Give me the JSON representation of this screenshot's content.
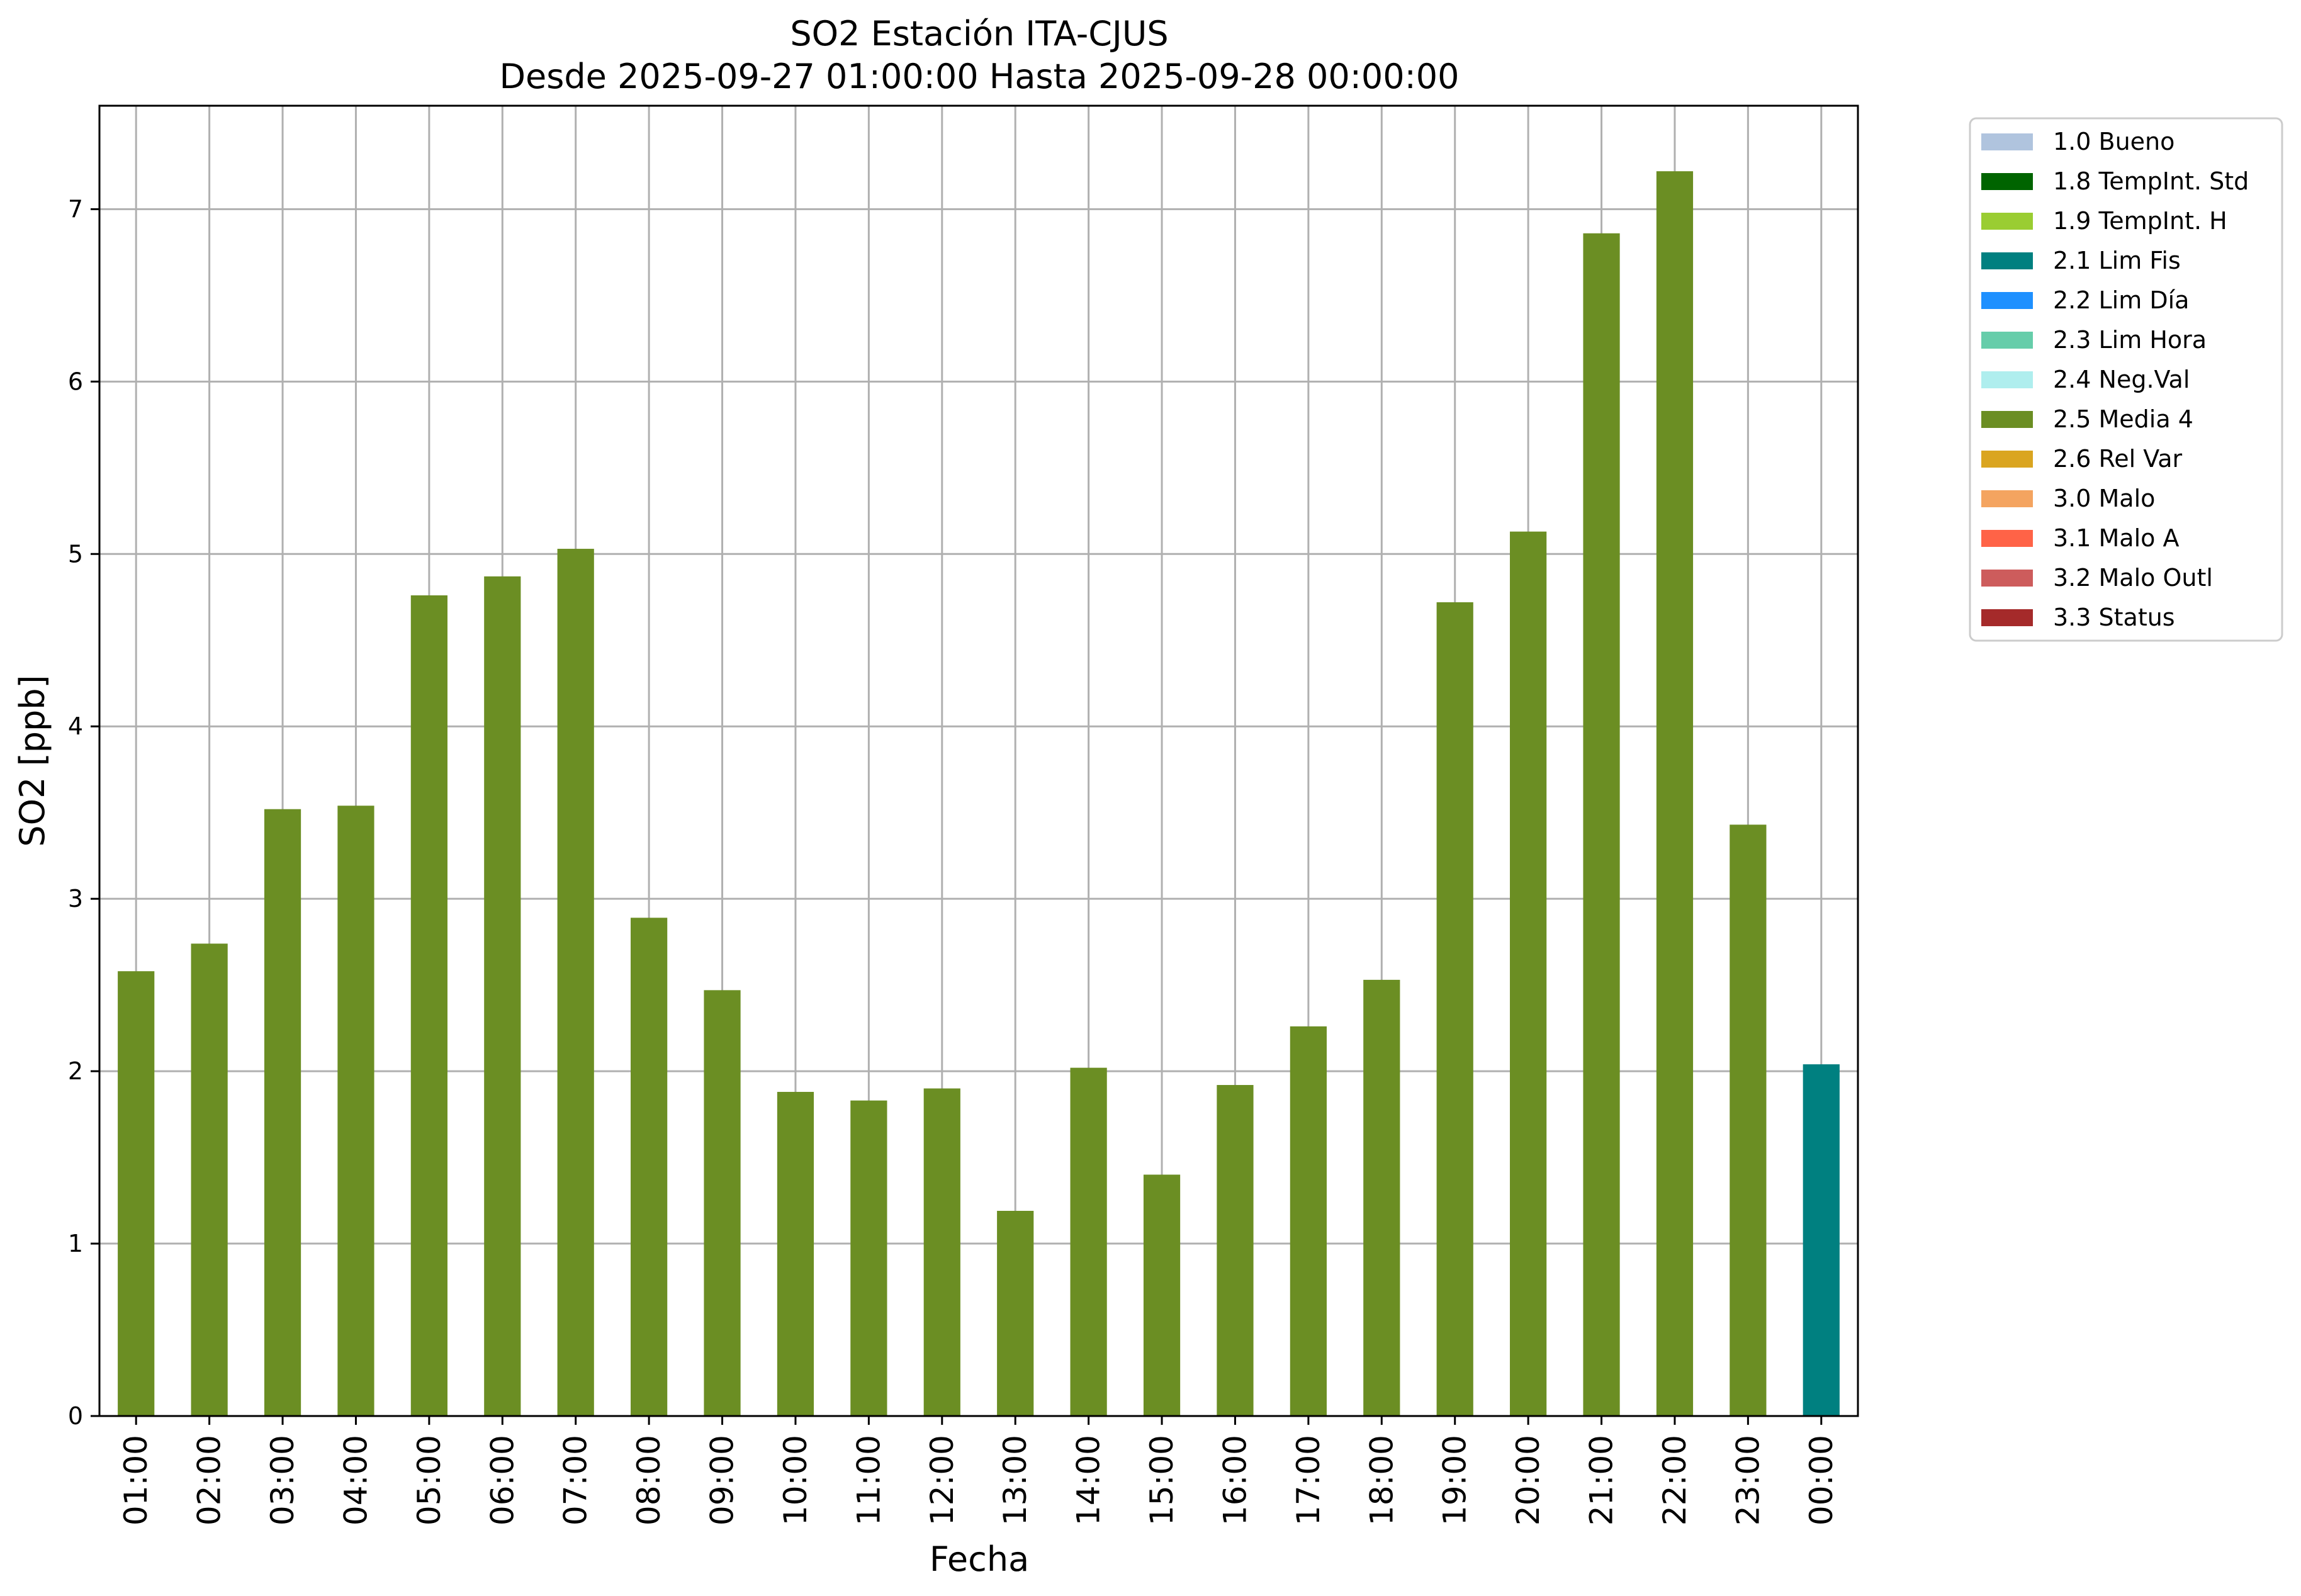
{
  "chart_data": {
    "type": "bar",
    "title": "SO2 Estación ITA-CJUS",
    "subtitle": "Desde 2025-09-27 01:00:00 Hasta 2025-09-28 00:00:00",
    "xlabel": "Fecha",
    "ylabel": "SO2 [ppb]",
    "ylim": [
      0,
      7.6
    ],
    "yticks": [
      "0",
      "1",
      "2",
      "3",
      "4",
      "5",
      "6",
      "7"
    ],
    "grid": true,
    "legend_position": "outside-top-right",
    "categories": [
      "01:00",
      "02:00",
      "03:00",
      "04:00",
      "05:00",
      "06:00",
      "07:00",
      "08:00",
      "09:00",
      "10:00",
      "11:00",
      "12:00",
      "13:00",
      "14:00",
      "15:00",
      "16:00",
      "17:00",
      "18:00",
      "19:00",
      "20:00",
      "21:00",
      "22:00",
      "23:00",
      "00:00"
    ],
    "values": [
      2.58,
      2.74,
      3.52,
      3.54,
      4.76,
      4.87,
      5.03,
      2.89,
      2.47,
      1.88,
      1.83,
      1.9,
      1.19,
      2.02,
      1.4,
      1.92,
      2.26,
      2.53,
      4.72,
      5.13,
      6.86,
      7.22,
      3.43,
      2.04
    ],
    "bar_flags": [
      "2.5 Media 4",
      "2.5 Media 4",
      "2.5 Media 4",
      "2.5 Media 4",
      "2.5 Media 4",
      "2.5 Media 4",
      "2.5 Media 4",
      "2.5 Media 4",
      "2.5 Media 4",
      "2.5 Media 4",
      "2.5 Media 4",
      "2.5 Media 4",
      "2.5 Media 4",
      "2.5 Media 4",
      "2.5 Media 4",
      "2.5 Media 4",
      "2.5 Media 4",
      "2.5 Media 4",
      "2.5 Media 4",
      "2.5 Media 4",
      "2.5 Media 4",
      "2.5 Media 4",
      "2.5 Media 4",
      "2.1 Lim Fis"
    ],
    "legend": [
      {
        "label": "1.0 Bueno",
        "color": "#b0c4de"
      },
      {
        "label": "1.8 TempInt. Std",
        "color": "#006400"
      },
      {
        "label": "1.9 TempInt. H",
        "color": "#9acd32"
      },
      {
        "label": "2.1 Lim Fis",
        "color": "#008080"
      },
      {
        "label": "2.2 Lim Día",
        "color": "#1e90ff"
      },
      {
        "label": "2.3 Lim Hora",
        "color": "#66cdaa"
      },
      {
        "label": "2.4 Neg.Val",
        "color": "#afeeee"
      },
      {
        "label": "2.5 Media 4",
        "color": "#6b8e23"
      },
      {
        "label": "2.6 Rel Var",
        "color": "#daa520"
      },
      {
        "label": "3.0 Malo",
        "color": "#f4a460"
      },
      {
        "label": "3.1 Malo A",
        "color": "#ff6347"
      },
      {
        "label": "3.2 Malo Outl",
        "color": "#cd5c5c"
      },
      {
        "label": "3.3 Status",
        "color": "#a52a2a"
      }
    ]
  }
}
